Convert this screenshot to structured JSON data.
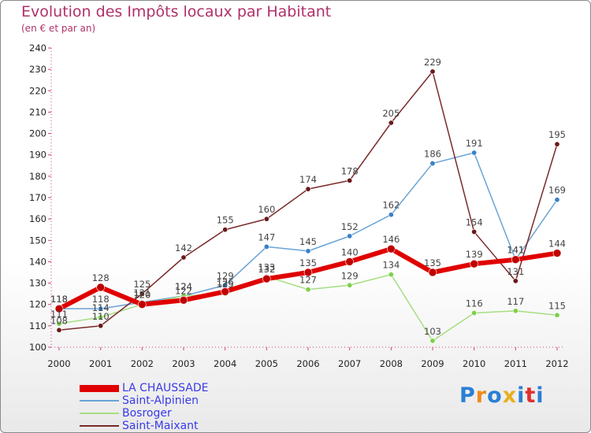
{
  "title": "Evolution des Impôts locaux par Habitant",
  "subtitle": "(en € et par an)",
  "brand": {
    "letters": [
      "P",
      "r",
      "o",
      "x",
      "i",
      "t",
      "i"
    ],
    "colors": [
      "#2a7fd4",
      "#f08a1c",
      "#2a7fd4",
      "#e8b020",
      "#2a7fd4",
      "#e03030",
      "#2a7fd4"
    ]
  },
  "chart_data": {
    "type": "line",
    "title": "Evolution des Impôts locaux par Habitant",
    "subtitle": "(en € et par an)",
    "x": [
      "2000",
      "2001",
      "2002",
      "2003",
      "2004",
      "2005",
      "2006",
      "2007",
      "2008",
      "2009",
      "2010",
      "2011",
      "2012"
    ],
    "ylim": [
      100,
      240
    ],
    "yticks": [
      100,
      110,
      120,
      130,
      140,
      150,
      160,
      170,
      180,
      190,
      200,
      210,
      220,
      230,
      240
    ],
    "grid": false,
    "legend_position": "bottom-left",
    "series": [
      {
        "name": "LA CHAUSSADE",
        "color": "#e00000",
        "marker": "#c00000",
        "width": 6,
        "point": 5,
        "values": [
          118,
          128,
          120,
          122,
          126,
          132,
          135,
          140,
          146,
          135,
          139,
          141,
          144
        ],
        "labels": [
          118,
          128,
          120,
          122,
          126,
          132,
          135,
          140,
          146,
          135,
          139,
          141,
          144
        ]
      },
      {
        "name": "Saint-Alpinien",
        "color": "#6aa3d6",
        "marker": "#3a80c8",
        "width": 1.5,
        "point": 3.2,
        "values": [
          118,
          118,
          121,
          124,
          129,
          147,
          145,
          152,
          162,
          186,
          191,
          141,
          169
        ],
        "labels": [
          118,
          118,
          121,
          124,
          129,
          147,
          145,
          152,
          162,
          186,
          191,
          141,
          169
        ]
      },
      {
        "name": "Bosroger",
        "color": "#a6de82",
        "marker": "#7cd04a",
        "width": 1.5,
        "point": 3.2,
        "values": [
          111,
          114,
          120,
          124,
          125,
          133,
          127,
          129,
          134,
          103,
          116,
          117,
          115
        ],
        "labels": [
          111,
          114,
          120,
          124,
          125,
          133,
          127,
          129,
          134,
          103,
          116,
          117,
          115
        ]
      },
      {
        "name": "Saint-Maixant",
        "color": "#7a2a2a",
        "marker": "#6a1a1a",
        "width": 1.5,
        "point": 3.2,
        "values": [
          108,
          110,
          125,
          142,
          155,
          160,
          174,
          178,
          205,
          229,
          154,
          131,
          195
        ],
        "labels": [
          108,
          110,
          125,
          142,
          155,
          160,
          174,
          178,
          205,
          229,
          154,
          131,
          195
        ]
      }
    ]
  }
}
